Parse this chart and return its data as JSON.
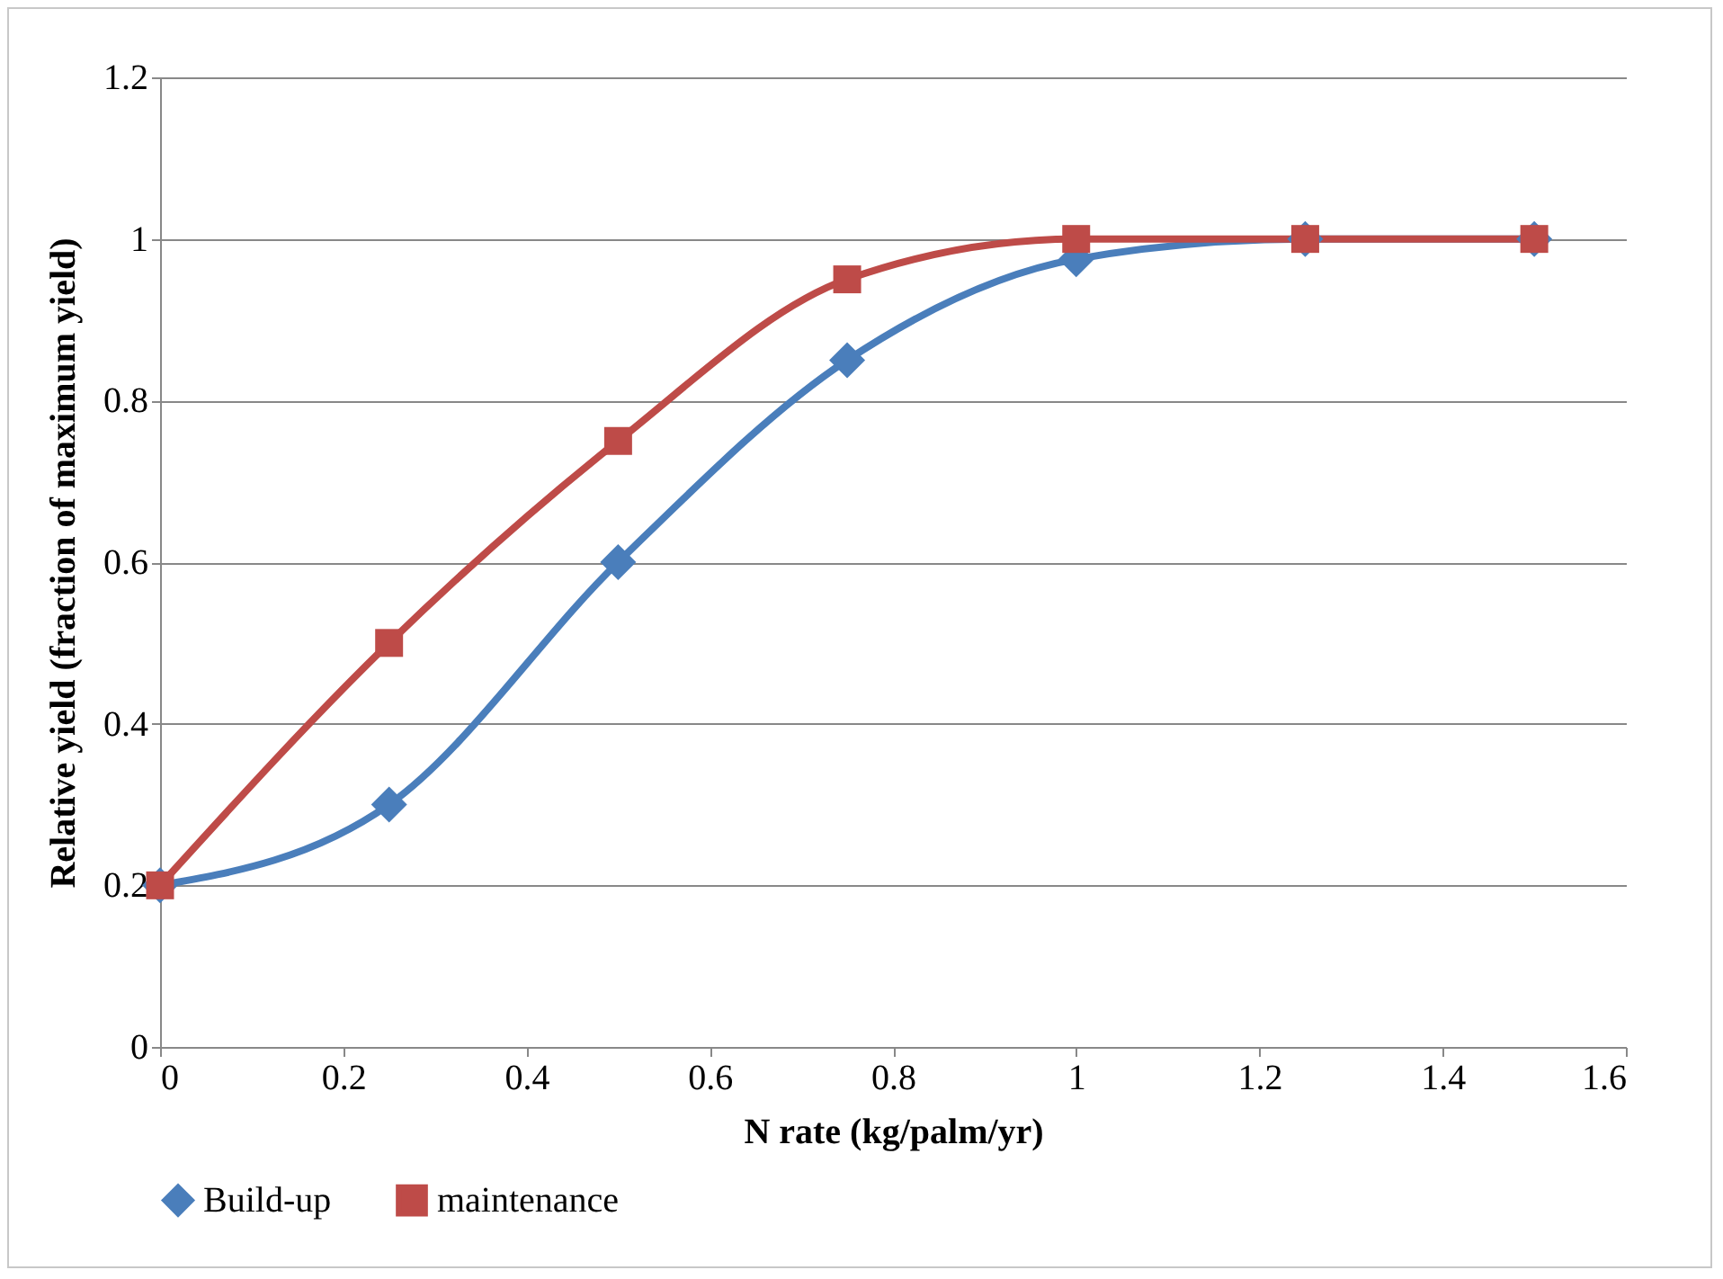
{
  "chart_data": {
    "type": "line",
    "xlabel": "N rate (kg/palm/yr)",
    "ylabel": "Relative yield (fraction of maximum yield)",
    "x": [
      0,
      0.25,
      0.5,
      0.75,
      1,
      1.25,
      1.5
    ],
    "series": [
      {
        "name": "Build-up",
        "color": "#4a7ebb",
        "marker": "diamond",
        "values": [
          0.2,
          0.3,
          0.6,
          0.85,
          0.975,
          1,
          1
        ]
      },
      {
        "name": "maintenance",
        "color": "#be4b48",
        "marker": "square",
        "values": [
          0.2,
          0.5,
          0.75,
          0.95,
          1,
          1,
          1
        ]
      }
    ],
    "xlim": [
      0,
      1.6
    ],
    "xticks": [
      0,
      0.2,
      0.4,
      0.6,
      0.8,
      1,
      1.2,
      1.4,
      1.6
    ],
    "ylim": [
      0,
      1.2
    ],
    "yticks": [
      0,
      0.2,
      0.4,
      0.6,
      0.8,
      1,
      1.2
    ],
    "grid": "y",
    "legend": "bottom",
    "line_style": "solid"
  }
}
